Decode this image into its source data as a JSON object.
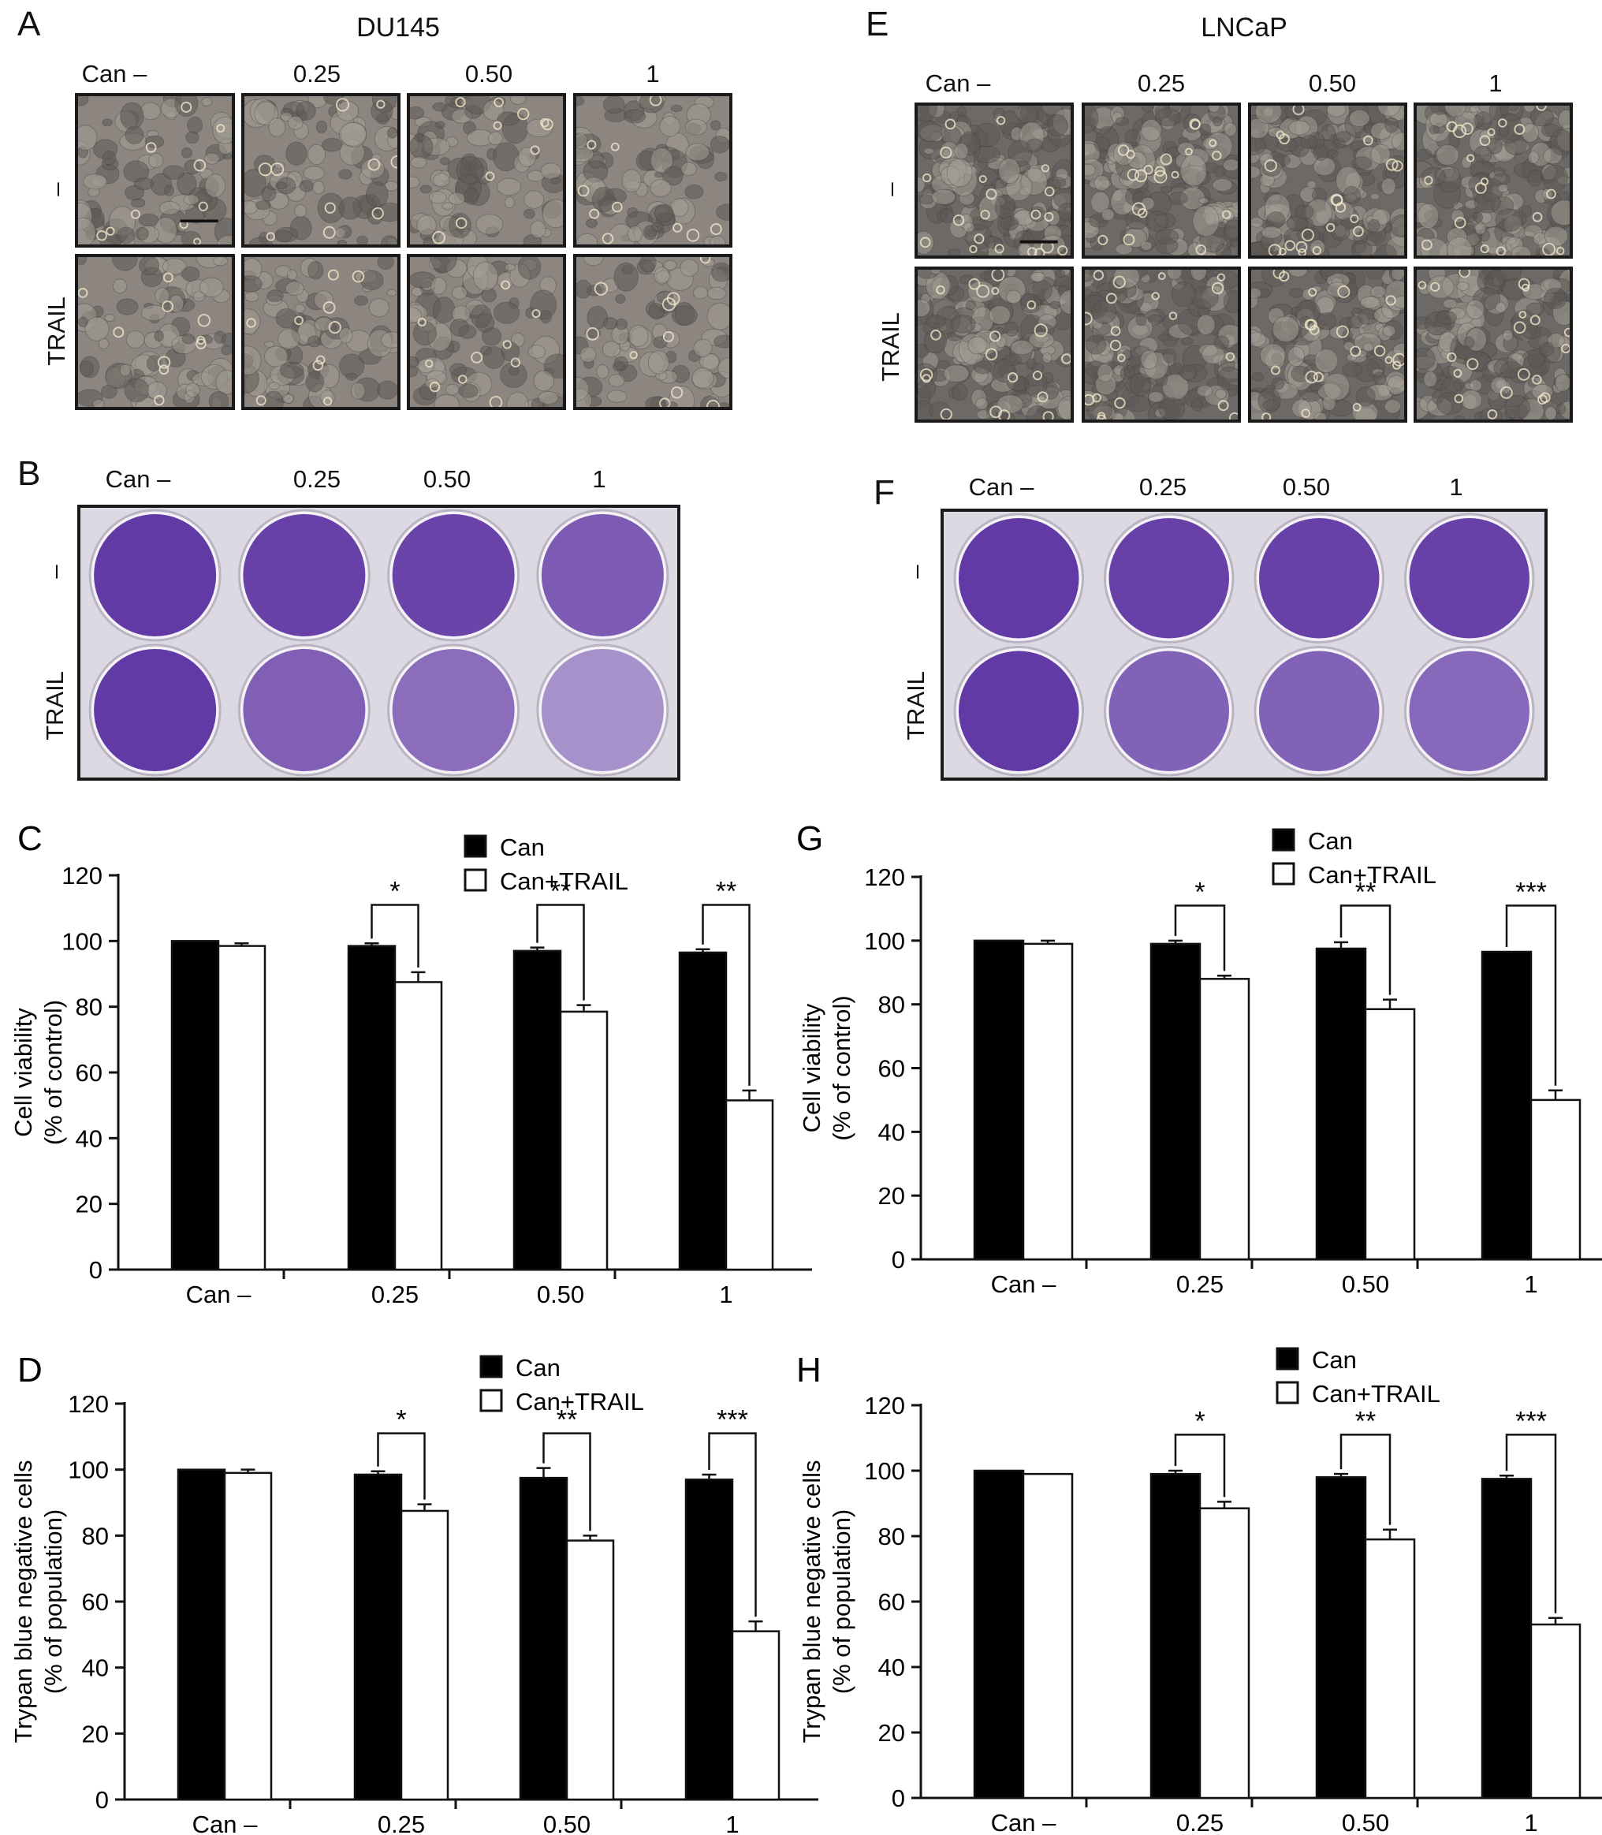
{
  "panels_top": {
    "A": {
      "letter": "A",
      "title": "DU145",
      "columns": [
        "Can –",
        "0.25",
        "0.50",
        "1"
      ],
      "rows": [
        "–",
        "TRAIL"
      ]
    },
    "B": {
      "letter": "B",
      "columns": [
        "Can –",
        "0.25",
        "0.50",
        "1"
      ],
      "rows": [
        "–",
        "TRAIL"
      ],
      "stain_intensity": [
        [
          1.0,
          0.95,
          0.92,
          0.75
        ],
        [
          1.0,
          0.72,
          0.62,
          0.35
        ]
      ]
    },
    "E": {
      "letter": "E",
      "title": "LNCaP",
      "columns": [
        "Can –",
        "0.25",
        "0.50",
        "1"
      ],
      "rows": [
        "–",
        "TRAIL"
      ]
    },
    "F": {
      "letter": "F",
      "columns": [
        "Can –",
        "0.25",
        "0.50",
        "1"
      ],
      "rows": [
        "–",
        "TRAIL"
      ],
      "stain_intensity": [
        [
          1.0,
          0.95,
          0.95,
          0.95
        ],
        [
          1.0,
          0.7,
          0.7,
          0.65
        ]
      ]
    }
  },
  "colors": {
    "can": "#000000",
    "can_trail": "#ffffff",
    "stain": "#5a2fa0"
  },
  "chart_data": [
    {
      "id": "C",
      "letter": "C",
      "type": "bar",
      "categories": [
        "Can –",
        "0.25",
        "0.50",
        "1"
      ],
      "series": [
        {
          "name": "Can",
          "values": [
            100,
            98.5,
            97,
            96.5
          ],
          "errors": [
            0,
            0.8,
            1,
            1
          ]
        },
        {
          "name": "Can+TRAIL",
          "values": [
            98.5,
            87.5,
            78.5,
            51.5
          ],
          "errors": [
            0.8,
            3,
            2,
            3
          ]
        }
      ],
      "significance": [
        "",
        "*",
        "**",
        "**"
      ],
      "ylabel": [
        "Cell viability",
        "(% of control)"
      ],
      "yticks": [
        0,
        20,
        40,
        60,
        80,
        100,
        120
      ],
      "ylim": [
        0,
        120
      ],
      "legend": "top-center"
    },
    {
      "id": "D",
      "letter": "D",
      "type": "bar",
      "categories": [
        "Can –",
        "0.25",
        "0.50",
        "1"
      ],
      "series": [
        {
          "name": "Can",
          "values": [
            100,
            98.5,
            97.5,
            97
          ],
          "errors": [
            0,
            1,
            3,
            1.5
          ]
        },
        {
          "name": "Can+TRAIL",
          "values": [
            99,
            87.5,
            78.5,
            51
          ],
          "errors": [
            1,
            2,
            1.5,
            3
          ]
        }
      ],
      "significance": [
        "",
        "*",
        "**",
        "***"
      ],
      "ylabel": [
        "Trypan blue negative cells",
        "(% of population)"
      ],
      "yticks": [
        0,
        20,
        40,
        60,
        80,
        100,
        120
      ],
      "ylim": [
        0,
        120
      ],
      "legend": "top-center"
    },
    {
      "id": "G",
      "letter": "G",
      "type": "bar",
      "categories": [
        "Can –",
        "0.25",
        "0.50",
        "1"
      ],
      "series": [
        {
          "name": "Can",
          "values": [
            100,
            99,
            97.5,
            96.5
          ],
          "errors": [
            0,
            1,
            2,
            0
          ]
        },
        {
          "name": "Can+TRAIL",
          "values": [
            99,
            88,
            78.5,
            50
          ],
          "errors": [
            1,
            1,
            3,
            3
          ]
        }
      ],
      "significance": [
        "",
        "*",
        "**",
        "***"
      ],
      "ylabel": [
        "Cell viability",
        "(% of control)"
      ],
      "yticks": [
        0,
        20,
        40,
        60,
        80,
        100,
        120
      ],
      "ylim": [
        0,
        120
      ],
      "legend": "top-center"
    },
    {
      "id": "H",
      "letter": "H",
      "type": "bar",
      "categories": [
        "Can –",
        "0.25",
        "0.50",
        "1"
      ],
      "series": [
        {
          "name": "Can",
          "values": [
            100,
            99,
            98,
            97.5
          ],
          "errors": [
            0,
            1,
            1,
            1
          ]
        },
        {
          "name": "Can+TRAIL",
          "values": [
            99,
            88.5,
            79,
            53
          ],
          "errors": [
            0,
            2,
            3,
            2
          ]
        }
      ],
      "significance": [
        "",
        "*",
        "**",
        "***"
      ],
      "ylabel": [
        "Trypan blue negative cells",
        "(% of population)"
      ],
      "yticks": [
        0,
        20,
        40,
        60,
        80,
        100,
        120
      ],
      "ylim": [
        0,
        120
      ],
      "legend": "top-center"
    }
  ]
}
